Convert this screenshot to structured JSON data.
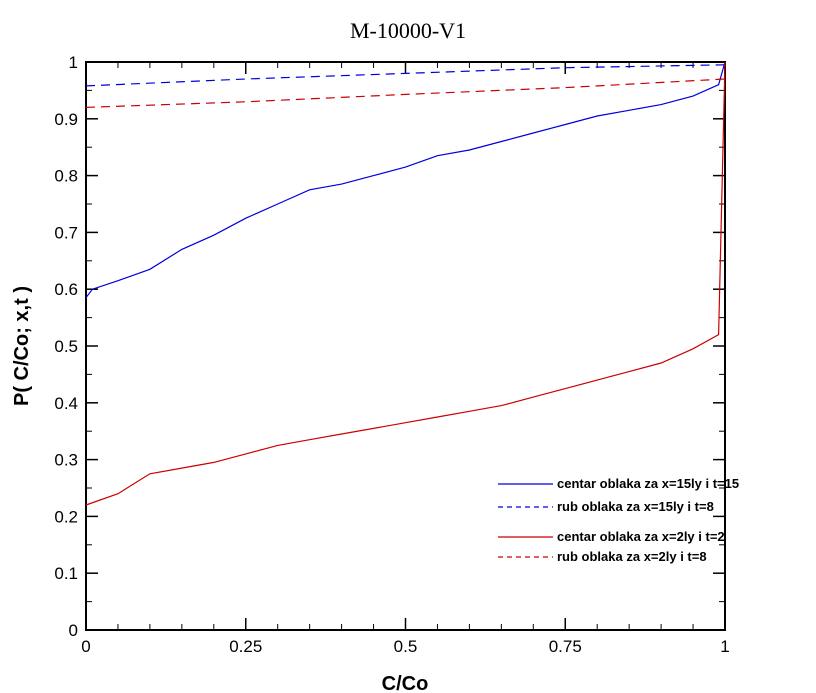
{
  "chart_data": {
    "type": "line",
    "title": "M-10000-V1",
    "xlabel": "C/Co",
    "ylabel": "P( C/Co; x,t )",
    "xlim": [
      0,
      1
    ],
    "ylim": [
      0,
      1
    ],
    "x_ticks": [
      0,
      0.25,
      0.5,
      0.75,
      1
    ],
    "x_tick_labels": [
      "0",
      "0.25",
      "0.5",
      "0.75",
      "1"
    ],
    "y_ticks": [
      0,
      0.1,
      0.2,
      0.3,
      0.4,
      0.5,
      0.6,
      0.7,
      0.8,
      0.9,
      1
    ],
    "y_tick_labels": [
      "0",
      "0.1",
      "0.2",
      "0.3",
      "0.4",
      "0.5",
      "0.6",
      "0.7",
      "0.8",
      "0.9",
      "1"
    ],
    "grid": false,
    "legend_position": "right",
    "series": [
      {
        "name": "centar oblaka za x=15ly i t=15",
        "color": "#0000dd",
        "dash": "solid",
        "points": [
          [
            0,
            0.585
          ],
          [
            0.01,
            0.6
          ],
          [
            0.05,
            0.615
          ],
          [
            0.1,
            0.635
          ],
          [
            0.15,
            0.67
          ],
          [
            0.2,
            0.695
          ],
          [
            0.25,
            0.725
          ],
          [
            0.3,
            0.75
          ],
          [
            0.35,
            0.775
          ],
          [
            0.4,
            0.785
          ],
          [
            0.45,
            0.8
          ],
          [
            0.5,
            0.815
          ],
          [
            0.55,
            0.835
          ],
          [
            0.6,
            0.845
          ],
          [
            0.65,
            0.86
          ],
          [
            0.7,
            0.875
          ],
          [
            0.75,
            0.89
          ],
          [
            0.8,
            0.905
          ],
          [
            0.85,
            0.915
          ],
          [
            0.9,
            0.925
          ],
          [
            0.95,
            0.94
          ],
          [
            0.99,
            0.96
          ],
          [
            1,
            1.0
          ]
        ]
      },
      {
        "name": "rub oblaka za x=15ly i t=8",
        "color": "#0000dd",
        "dash": "dashed",
        "points": [
          [
            0,
            0.958
          ],
          [
            0.25,
            0.97
          ],
          [
            0.5,
            0.98
          ],
          [
            0.75,
            0.99
          ],
          [
            1,
            0.995
          ]
        ]
      },
      {
        "name": "centar oblaka za x=2ly i t=2",
        "color": "#cc0000",
        "dash": "solid",
        "points": [
          [
            0,
            0.22
          ],
          [
            0.05,
            0.24
          ],
          [
            0.1,
            0.275
          ],
          [
            0.15,
            0.285
          ],
          [
            0.2,
            0.295
          ],
          [
            0.25,
            0.31
          ],
          [
            0.3,
            0.325
          ],
          [
            0.35,
            0.335
          ],
          [
            0.4,
            0.345
          ],
          [
            0.45,
            0.355
          ],
          [
            0.5,
            0.365
          ],
          [
            0.55,
            0.375
          ],
          [
            0.6,
            0.385
          ],
          [
            0.65,
            0.395
          ],
          [
            0.7,
            0.41
          ],
          [
            0.75,
            0.425
          ],
          [
            0.8,
            0.44
          ],
          [
            0.85,
            0.455
          ],
          [
            0.9,
            0.47
          ],
          [
            0.95,
            0.495
          ],
          [
            0.99,
            0.52
          ],
          [
            1,
            1.0
          ]
        ]
      },
      {
        "name": "rub oblaka za x=2ly i t=8",
        "color": "#cc0000",
        "dash": "dashed",
        "points": [
          [
            0,
            0.92
          ],
          [
            0.25,
            0.93
          ],
          [
            0.5,
            0.943
          ],
          [
            0.75,
            0.955
          ],
          [
            1,
            0.97
          ]
        ]
      }
    ]
  }
}
